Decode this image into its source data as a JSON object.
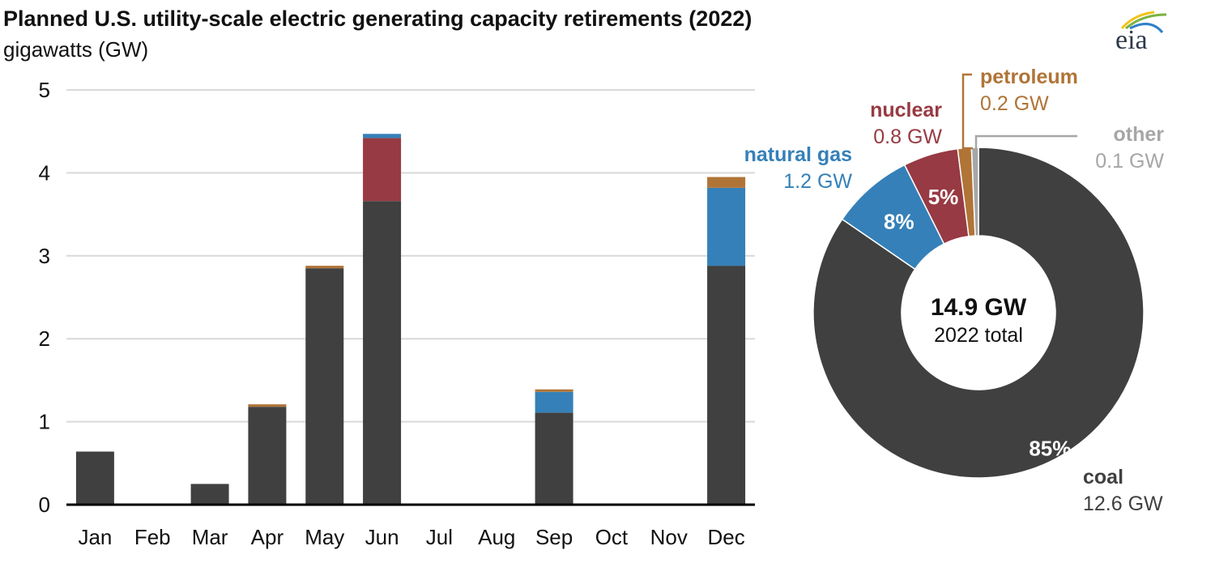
{
  "title": "Planned U.S. utility-scale electric generating capacity retirements (2022)",
  "subtitle": "gigawatts (GW)",
  "logo_text": "eia",
  "colors": {
    "coal": "#404040",
    "nuclear": "#973a43",
    "natural_gas": "#3580b8",
    "petroleum": "#b07437",
    "other": "#a6a6a6"
  },
  "chart_data": [
    {
      "type": "bar",
      "stacked": true,
      "categories": [
        "Jan",
        "Feb",
        "Mar",
        "Apr",
        "May",
        "Jun",
        "Jul",
        "Aug",
        "Sep",
        "Oct",
        "Nov",
        "Dec"
      ],
      "series": [
        {
          "key": "coal",
          "values": [
            0.64,
            0.01,
            0.25,
            1.18,
            2.85,
            3.66,
            0,
            0,
            1.11,
            0,
            0,
            2.88
          ]
        },
        {
          "key": "nuclear",
          "values": [
            0,
            0,
            0,
            0,
            0,
            0.76,
            0,
            0,
            0,
            0,
            0,
            0
          ]
        },
        {
          "key": "natural_gas",
          "values": [
            0,
            0,
            0,
            0,
            0,
            0.05,
            0,
            0,
            0.25,
            0,
            0,
            0.94
          ]
        },
        {
          "key": "petroleum",
          "values": [
            0,
            0,
            0,
            0.03,
            0.03,
            0,
            0,
            0,
            0.03,
            0,
            0,
            0.13
          ]
        }
      ],
      "ylim": [
        0,
        5
      ],
      "yticks": [
        "0",
        "1",
        "2",
        "3",
        "4",
        "5"
      ],
      "grid": true
    },
    {
      "type": "pie",
      "donut": true,
      "center_value": "14.9 GW",
      "center_label": "2022 total",
      "slices": [
        {
          "key": "coal",
          "name": "coal",
          "value": 12.6,
          "value_label": "12.6 GW",
          "pct_label": "85%"
        },
        {
          "key": "natural_gas",
          "name": "natural gas",
          "value": 1.2,
          "value_label": "1.2 GW",
          "pct_label": "8%"
        },
        {
          "key": "nuclear",
          "name": "nuclear",
          "value": 0.8,
          "value_label": "0.8 GW",
          "pct_label": "5%"
        },
        {
          "key": "petroleum",
          "name": "petroleum",
          "value": 0.2,
          "value_label": "0.2 GW",
          "pct_label": ""
        },
        {
          "key": "other",
          "name": "other",
          "value": 0.1,
          "value_label": "0.1 GW",
          "pct_label": ""
        }
      ]
    }
  ]
}
